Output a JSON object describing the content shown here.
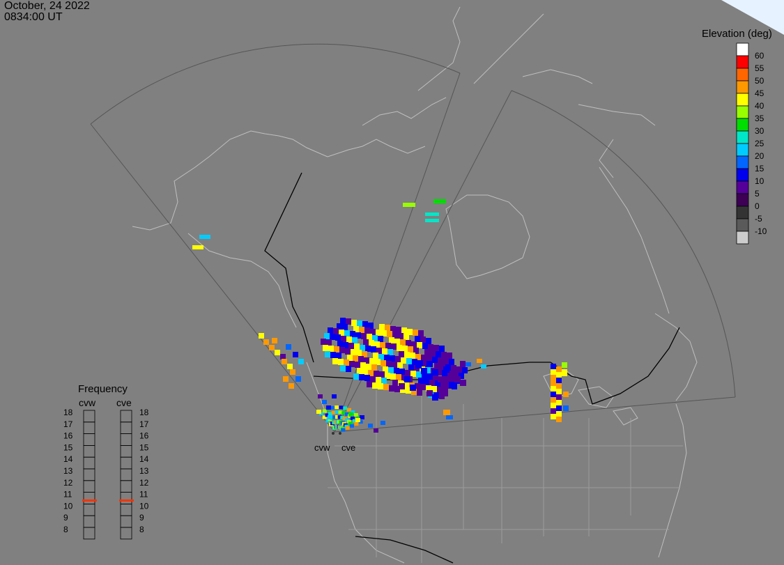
{
  "header": {
    "date": "October, 24 2022",
    "time": "0834:00 UT"
  },
  "legend": {
    "title": "Elevation (deg)",
    "colors": [
      "#ffffff",
      "#ff0000",
      "#ff6600",
      "#ff9900",
      "#ffff00",
      "#99ff00",
      "#00dd00",
      "#00e6c8",
      "#00ccff",
      "#0066ff",
      "#0000ee",
      "#550099",
      "#3d0055",
      "#333333",
      "#5a5a5a",
      "#cccccc"
    ],
    "labels": [
      "60",
      "55",
      "50",
      "45",
      "40",
      "35",
      "30",
      "25",
      "20",
      "15",
      "10",
      "5",
      "0",
      "-5",
      "-10"
    ]
  },
  "frequency": {
    "title": "Frequency",
    "radars": [
      "cvw",
      "cve"
    ],
    "scale": [
      "18",
      "17",
      "16",
      "15",
      "14",
      "13",
      "12",
      "11",
      "10",
      "9",
      "8"
    ],
    "current_mhz": {
      "cvw": 10.8,
      "cve": 10.8
    },
    "marker_color": "#ff3300"
  },
  "sites": {
    "west_label": "cvw",
    "east_label": "cve"
  },
  "map_colors": {
    "background": "#808080",
    "coast": "#bfbfbf",
    "border": "#000000",
    "fov": "#555555",
    "snow_corner": "#e6f2ff"
  }
}
